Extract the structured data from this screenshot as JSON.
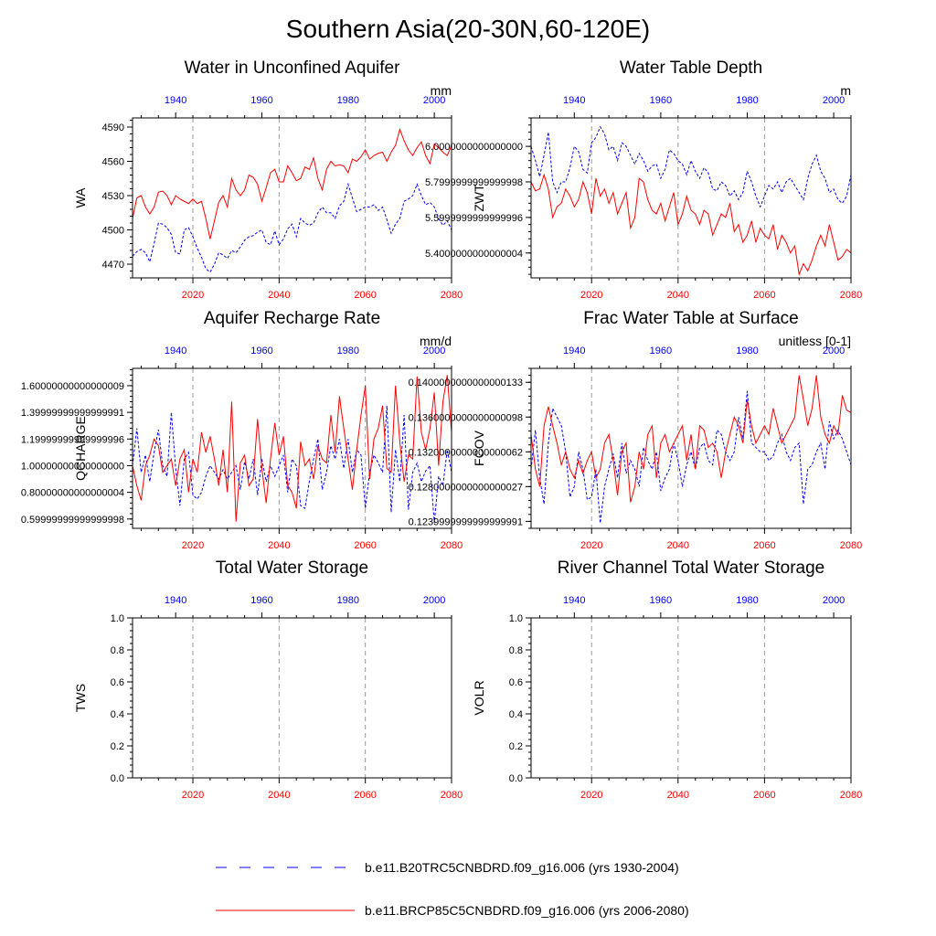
{
  "title": "Southern Asia(20-30N,60-120E)",
  "colors": {
    "hist": "#0000ff",
    "rcp": "#ff0000",
    "axis": "#000000",
    "grid": "#999999"
  },
  "legend": {
    "hist_label": "b.e11.B20TRC5CNBDRD.f09_g16.006 (yrs 1930-2004)",
    "rcp_label": "b.e11.BRCP85C5CNBDRD.f09_g16.006 (yrs 2006-2080)"
  },
  "chart_data": [
    {
      "type": "line",
      "title": "Water in Unconfined Aquifer",
      "ylabel": "WA",
      "units": "mm",
      "ylim": [
        4458,
        4598
      ],
      "yticks": [
        4470,
        4500,
        4530,
        4560,
        4590
      ],
      "bottom_xaxis": {
        "lim": [
          2006,
          2080
        ],
        "ticks": [
          2020,
          2040,
          2060,
          2080
        ]
      },
      "top_xaxis": {
        "lim": [
          1930,
          2004
        ],
        "ticks": [
          1940,
          1960,
          1980,
          2000
        ]
      },
      "series": [
        {
          "name": "b.e11.B20TRC5CNBDRD.f09_g16.006 (yrs 1930-2004)",
          "style": "dashed",
          "x_start": 1930,
          "values": [
            4477,
            4481,
            4483,
            4480,
            4472,
            4488,
            4506,
            4505,
            4502,
            4496,
            4480,
            4479,
            4500,
            4502,
            4494,
            4484,
            4476,
            4466,
            4463,
            4470,
            4480,
            4478,
            4475,
            4482,
            4480,
            4485,
            4491,
            4494,
            4495,
            4498,
            4500,
            4489,
            4487,
            4499,
            4487,
            4492,
            4501,
            4505,
            4494,
            4510,
            4506,
            4504,
            4506,
            4515,
            4520,
            4515,
            4515,
            4510,
            4521,
            4525,
            4540,
            4528,
            4516,
            4518,
            4520,
            4520,
            4522,
            4517,
            4520,
            4509,
            4497,
            4505,
            4510,
            4525,
            4527,
            4530,
            4540,
            4530,
            4522,
            4524,
            4520,
            4510,
            4504,
            4508,
            4500
          ]
        },
        {
          "name": "b.e11.BRCP85C5CNBDRD.f09_g16.006 (yrs 2006-2080)",
          "style": "solid",
          "x_start": 2006,
          "values": [
            4510,
            4528,
            4530,
            4520,
            4514,
            4520,
            4533,
            4534,
            4530,
            4522,
            4530,
            4527,
            4525,
            4523,
            4527,
            4523,
            4525,
            4510,
            4492,
            4508,
            4524,
            4530,
            4520,
            4545,
            4535,
            4530,
            4535,
            4548,
            4546,
            4540,
            4525,
            4537,
            4550,
            4553,
            4542,
            4542,
            4556,
            4550,
            4543,
            4545,
            4555,
            4553,
            4563,
            4545,
            4535,
            4553,
            4560,
            4556,
            4557,
            4556,
            4550,
            4562,
            4560,
            4564,
            4570,
            4562,
            4565,
            4567,
            4568,
            4560,
            4568,
            4574,
            4588,
            4578,
            4570,
            4565,
            4572,
            4577,
            4565,
            4558,
            4575,
            4572,
            4568,
            4565,
            4574
          ]
        }
      ]
    },
    {
      "type": "line",
      "title": "Water Table Depth",
      "ylabel": "ZWT",
      "units": "m",
      "ylim": [
        5.26,
        6.16
      ],
      "yticks": [
        5.4,
        5.6,
        5.8,
        6.0
      ],
      "bottom_xaxis": {
        "lim": [
          2006,
          2080
        ],
        "ticks": [
          2020,
          2040,
          2060,
          2080
        ]
      },
      "top_xaxis": {
        "lim": [
          1930,
          2004
        ],
        "ticks": [
          1940,
          1960,
          1980,
          2000
        ]
      },
      "series": [
        {
          "name": "b.e11.B20TRC5CNBDRD.f09_g16.006 (yrs 1930-2004)",
          "style": "dashed",
          "x_start": 1930,
          "values": [
            6.0,
            5.92,
            5.83,
            5.95,
            6.08,
            5.8,
            5.74,
            5.8,
            5.8,
            5.88,
            6.0,
            5.97,
            5.87,
            5.85,
            6.02,
            6.05,
            6.11,
            6.07,
            5.98,
            6.0,
            5.92,
            6.02,
            6.0,
            5.95,
            5.9,
            5.96,
            5.92,
            5.86,
            5.89,
            5.9,
            5.82,
            5.87,
            5.98,
            5.96,
            5.92,
            5.9,
            5.84,
            5.92,
            5.86,
            5.82,
            5.88,
            5.85,
            5.76,
            5.75,
            5.8,
            5.78,
            5.72,
            5.75,
            5.7,
            5.74,
            5.86,
            5.8,
            5.72,
            5.66,
            5.72,
            5.78,
            5.76,
            5.8,
            5.74,
            5.8,
            5.82,
            5.78,
            5.74,
            5.7,
            5.82,
            5.9,
            5.95,
            5.86,
            5.82,
            5.74,
            5.76,
            5.7,
            5.68,
            5.72,
            5.84
          ]
        },
        {
          "name": "b.e11.BRCP85C5CNBDRD.f09_g16.006 (yrs 2006-2080)",
          "style": "solid",
          "x_start": 2006,
          "values": [
            5.8,
            5.75,
            5.76,
            5.84,
            5.76,
            5.6,
            5.66,
            5.68,
            5.76,
            5.72,
            5.66,
            5.7,
            5.8,
            5.74,
            5.62,
            5.82,
            5.72,
            5.76,
            5.68,
            5.74,
            5.62,
            5.68,
            5.74,
            5.54,
            5.6,
            5.82,
            5.8,
            5.7,
            5.64,
            5.62,
            5.68,
            5.58,
            5.66,
            5.74,
            5.56,
            5.62,
            5.72,
            5.64,
            5.62,
            5.56,
            5.64,
            5.62,
            5.5,
            5.56,
            5.62,
            5.6,
            5.68,
            5.52,
            5.56,
            5.46,
            5.5,
            5.58,
            5.46,
            5.54,
            5.5,
            5.48,
            5.56,
            5.42,
            5.5,
            5.46,
            5.4,
            5.44,
            5.28,
            5.34,
            5.3,
            5.36,
            5.44,
            5.5,
            5.44,
            5.56,
            5.46,
            5.36,
            5.38,
            5.42,
            5.4
          ]
        }
      ]
    },
    {
      "type": "line",
      "title": "Aquifer Recharge Rate",
      "ylabel": "QCHARGE",
      "units": "mm/d",
      "ylim": [
        0.53,
        1.73
      ],
      "yticks": [
        0.6,
        0.8,
        1.0,
        1.2,
        1.4,
        1.6
      ],
      "bottom_xaxis": {
        "lim": [
          2006,
          2080
        ],
        "ticks": [
          2020,
          2040,
          2060,
          2080
        ]
      },
      "top_xaxis": {
        "lim": [
          1930,
          2004
        ],
        "ticks": [
          1940,
          1960,
          1980,
          2000
        ]
      },
      "series": [
        {
          "name": "b.e11.B20TRC5CNBDRD.f09_g16.006 (yrs 1930-2004)",
          "style": "dashed",
          "x_start": 1930,
          "values": [
            1.0,
            1.28,
            0.95,
            1.08,
            0.88,
            1.1,
            1.27,
            1.0,
            0.92,
            1.4,
            0.98,
            0.7,
            1.05,
            1.1,
            0.78,
            0.75,
            0.8,
            0.92,
            1.0,
            0.95,
            0.9,
            0.97,
            0.9,
            0.95,
            1.0,
            0.82,
            1.03,
            0.9,
            1.05,
            0.78,
            1.05,
            0.88,
            1.0,
            0.92,
            1.0,
            1.08,
            0.8,
            1.05,
            1.0,
            0.7,
            0.68,
            0.88,
            1.05,
            1.2,
            0.82,
            0.95,
            1.15,
            1.05,
            1.2,
            0.98,
            1.2,
            0.95,
            1.12,
            1.08,
            0.68,
            0.95,
            1.08,
            1.02,
            0.95,
            1.45,
            0.65,
            1.12,
            0.88,
            1.38,
            0.67,
            0.95,
            1.02,
            0.88,
            0.96,
            1.0,
            0.57,
            0.92,
            0.85,
            1.12,
            0.95
          ]
        },
        {
          "name": "b.e11.BRCP85C5CNBDRD.f09_g16.006 (yrs 2006-2080)",
          "style": "solid",
          "x_start": 2006,
          "values": [
            1.0,
            0.85,
            0.74,
            1.0,
            1.08,
            1.2,
            1.15,
            0.95,
            1.0,
            1.05,
            0.85,
            1.05,
            1.12,
            0.8,
            1.05,
            0.95,
            1.25,
            1.1,
            1.22,
            1.05,
            0.85,
            1.12,
            0.8,
            1.48,
            0.58,
            1.02,
            1.08,
            0.85,
            0.9,
            1.35,
            0.98,
            0.72,
            1.05,
            1.32,
            1.08,
            1.22,
            0.85,
            0.8,
            0.68,
            1.18,
            1.0,
            1.05,
            0.9,
            1.15,
            1.05,
            1.02,
            1.38,
            1.1,
            1.52,
            1.28,
            1.05,
            0.82,
            1.12,
            1.38,
            1.6,
            0.9,
            1.2,
            1.28,
            1.45,
            0.98,
            0.95,
            1.6,
            1.18,
            0.88,
            1.08,
            1.05,
            1.67,
            1.25,
            1.12,
            1.28,
            1.55,
            1.0,
            1.48,
            1.68,
            1.25
          ]
        }
      ]
    },
    {
      "type": "line",
      "title": "Frac Water Table at Surface",
      "ylabel": "FCOV",
      "units": "unitless [0-1]",
      "ylim": [
        0.1232,
        0.1416
      ],
      "yticks": [
        0.124,
        0.128,
        0.132,
        0.136,
        0.14
      ],
      "bottom_xaxis": {
        "lim": [
          2006,
          2080
        ],
        "ticks": [
          2020,
          2040,
          2060,
          2080
        ]
      },
      "top_xaxis": {
        "lim": [
          1930,
          2004
        ],
        "ticks": [
          1940,
          1960,
          1980,
          2000
        ]
      },
      "series": [
        {
          "name": "b.e11.B20TRC5CNBDRD.f09_g16.006 (yrs 1930-2004)",
          "style": "dashed",
          "x_start": 1930,
          "values": [
            0.13,
            0.1345,
            0.129,
            0.126,
            0.133,
            0.137,
            0.136,
            0.135,
            0.132,
            0.1268,
            0.128,
            0.132,
            0.13,
            0.1265,
            0.1268,
            0.13,
            0.1238,
            0.128,
            0.13,
            0.1318,
            0.129,
            0.133,
            0.1295,
            0.131,
            0.13,
            0.128,
            0.1325,
            0.131,
            0.13,
            0.132,
            0.1275,
            0.129,
            0.13,
            0.133,
            0.131,
            0.128,
            0.1305,
            0.132,
            0.13,
            0.1325,
            0.133,
            0.131,
            0.1305,
            0.1345,
            0.134,
            0.132,
            0.131,
            0.132,
            0.136,
            0.1335,
            0.139,
            0.133,
            0.1325,
            0.132,
            0.132,
            0.131,
            0.1315,
            0.133,
            0.134,
            0.132,
            0.131,
            0.1325,
            0.133,
            0.126,
            0.13,
            0.1305,
            0.132,
            0.133,
            0.13,
            0.1355,
            0.1335,
            0.1345,
            0.1335,
            0.132,
            0.1305
          ]
        },
        {
          "name": "b.e11.BRCP85C5CNBDRD.f09_g16.006 (yrs 2006-2080)",
          "style": "solid",
          "x_start": 2006,
          "values": [
            0.134,
            0.13,
            0.128,
            0.135,
            0.1372,
            0.135,
            0.133,
            0.1305,
            0.132,
            0.13,
            0.129,
            0.131,
            0.1295,
            0.131,
            0.132,
            0.129,
            0.13,
            0.133,
            0.134,
            0.131,
            0.127,
            0.132,
            0.133,
            0.1262,
            0.128,
            0.132,
            0.13,
            0.134,
            0.135,
            0.129,
            0.133,
            0.134,
            0.132,
            0.133,
            0.134,
            0.135,
            0.131,
            0.134,
            0.13,
            0.135,
            0.1345,
            0.1325,
            0.133,
            0.132,
            0.129,
            0.132,
            0.134,
            0.136,
            0.135,
            0.133,
            0.138,
            0.135,
            0.133,
            0.134,
            0.135,
            0.134,
            0.137,
            0.135,
            0.133,
            0.134,
            0.135,
            0.136,
            0.1408,
            0.138,
            0.135,
            0.137,
            0.1408,
            0.136,
            0.134,
            0.133,
            0.135,
            0.134,
            0.1385,
            0.1368,
            0.1365
          ]
        }
      ]
    },
    {
      "type": "line",
      "title": "Total Water Storage",
      "ylabel": "TWS",
      "units": "",
      "ylim": [
        0.0,
        1.0
      ],
      "yticks": [
        0.0,
        0.2,
        0.4,
        0.6,
        0.8,
        1.0
      ],
      "bottom_xaxis": {
        "lim": [
          2006,
          2080
        ],
        "ticks": [
          2020,
          2040,
          2060,
          2080
        ]
      },
      "top_xaxis": {
        "lim": [
          1930,
          2004
        ],
        "ticks": [
          1940,
          1960,
          1980,
          2000
        ]
      },
      "series": []
    },
    {
      "type": "line",
      "title": "River Channel Total Water Storage",
      "ylabel": "VOLR",
      "units": "",
      "ylim": [
        0.0,
        1.0
      ],
      "yticks": [
        0.0,
        0.2,
        0.4,
        0.6,
        0.8,
        1.0
      ],
      "bottom_xaxis": {
        "lim": [
          2006,
          2080
        ],
        "ticks": [
          2020,
          2040,
          2060,
          2080
        ]
      },
      "top_xaxis": {
        "lim": [
          1930,
          2004
        ],
        "ticks": [
          1940,
          1960,
          1980,
          2000
        ]
      },
      "series": []
    }
  ]
}
